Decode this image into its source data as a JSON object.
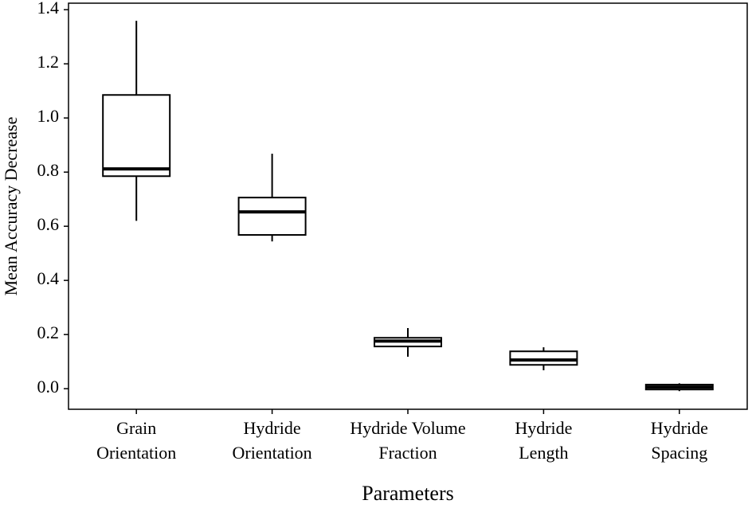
{
  "chart_data": {
    "type": "box",
    "x_label": "Parameters",
    "y_label": "Mean Accuracy Decrease",
    "categories": [
      [
        "Grain",
        "Orientation"
      ],
      [
        "Hydride",
        "Orientation"
      ],
      [
        "Hydride Volume",
        "Fraction"
      ],
      [
        "Hydride",
        "Length"
      ],
      [
        "Hydride",
        "Spacing"
      ]
    ],
    "boxes": [
      {
        "low": 0.62,
        "q1": 0.785,
        "median": 0.812,
        "q3": 1.085,
        "high": 1.359
      },
      {
        "low": 0.544,
        "q1": 0.568,
        "median": 0.653,
        "q3": 0.706,
        "high": 0.868
      },
      {
        "low": 0.118,
        "q1": 0.156,
        "median": 0.176,
        "q3": 0.188,
        "high": 0.224
      },
      {
        "low": 0.068,
        "q1": 0.088,
        "median": 0.106,
        "q3": 0.138,
        "high": 0.153
      },
      {
        "low": -0.009,
        "q1": -0.003,
        "median": 0.006,
        "q3": 0.015,
        "high": 0.02
      }
    ],
    "color": "#000000",
    "ylim": [
      -0.076,
      1.424
    ],
    "yticks": [
      {
        "value": 0,
        "label": "0.0"
      },
      0.2,
      0.4,
      0.6,
      0.8,
      {
        "value": 1,
        "label": "1.0"
      },
      1.2,
      1.4
    ],
    "grid": false
  }
}
